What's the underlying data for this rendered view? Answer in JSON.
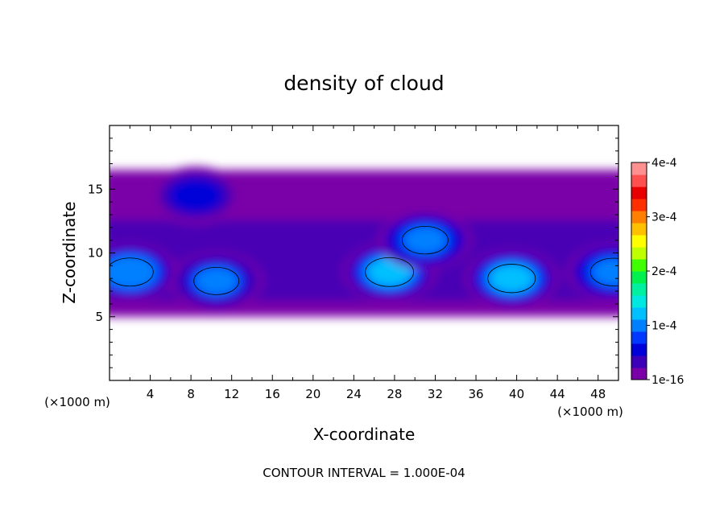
{
  "chart_data": {
    "type": "heatmap",
    "title": "density of cloud",
    "xlabel": "X-coordinate",
    "ylabel": "Z-coordinate",
    "x_unit": "(×1000 m)",
    "z_unit": "(×1000 m)",
    "xlim": [
      0,
      50
    ],
    "ylim": [
      0,
      20
    ],
    "x_ticks": [
      "4",
      "8",
      "12",
      "16",
      "20",
      "24",
      "28",
      "32",
      "36",
      "40",
      "44",
      "48"
    ],
    "y_ticks": [
      "5",
      "10",
      "15"
    ],
    "colorbar": {
      "range": [
        1e-16,
        0.0004
      ],
      "tick_labels": [
        "1e-16",
        "1e-4",
        "2e-4",
        "3e-4",
        "4e-4"
      ],
      "colors": [
        "#7a00a8",
        "#3c00b8",
        "#0000d8",
        "#0038ff",
        "#0080ff",
        "#00c0ff",
        "#00e8e0",
        "#00f0a0",
        "#00f050",
        "#40ff00",
        "#c0ff00",
        "#ffff00",
        "#ffc000",
        "#ff8000",
        "#ff3000",
        "#e80000",
        "#ff5050",
        "#ff9090"
      ]
    },
    "cloud_layer_z": [
      5,
      16.5
    ],
    "contour_level": 0.0001,
    "maxima": [
      {
        "x": 2.0,
        "z": 8.5,
        "value": 0.00014
      },
      {
        "x": 8.5,
        "z": 14.5,
        "value": 7e-05
      },
      {
        "x": 10.5,
        "z": 7.8,
        "value": 0.00012
      },
      {
        "x": 27.5,
        "z": 8.5,
        "value": 0.00016
      },
      {
        "x": 31.0,
        "z": 11.0,
        "value": 0.00013
      },
      {
        "x": 39.5,
        "z": 8.0,
        "value": 0.00015
      },
      {
        "x": 49.5,
        "z": 8.5,
        "value": 0.00013
      }
    ]
  },
  "footer_text": "CONTOUR INTERVAL = 1.000E-04"
}
